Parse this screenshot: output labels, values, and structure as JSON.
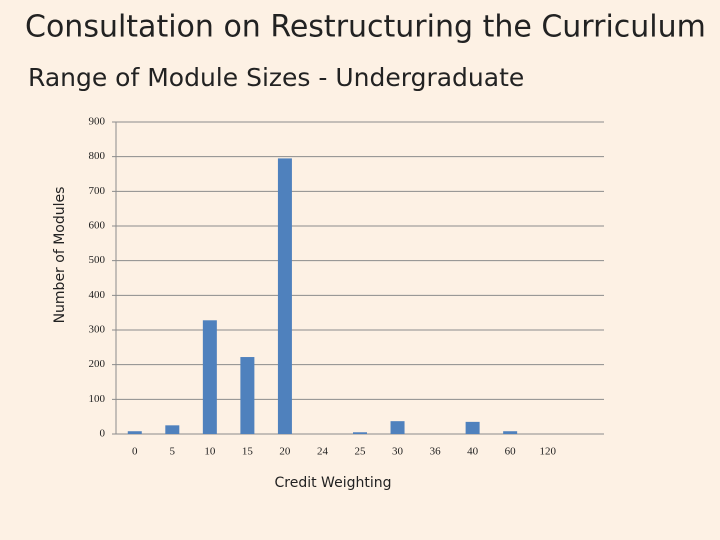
{
  "chart_data": {
    "type": "bar",
    "title": "Consultation on Restructuring the Curriculum",
    "subtitle": "Range of Module Sizes - Undergraduate",
    "x_label": "Credit Weighting",
    "y_label": "Number of Modules",
    "categories": [
      "0",
      "5",
      "10",
      "15",
      "20",
      "24",
      "25",
      "30",
      "36",
      "40",
      "60",
      "120"
    ],
    "values": [
      8,
      25,
      328,
      222,
      795,
      0,
      5,
      37,
      0,
      35,
      8,
      0
    ],
    "color": "#4f81bd",
    "ylim": [
      0,
      900
    ],
    "yticks": [
      0,
      100,
      200,
      300,
      400,
      500,
      600,
      700,
      800,
      900
    ],
    "grid": true
  }
}
